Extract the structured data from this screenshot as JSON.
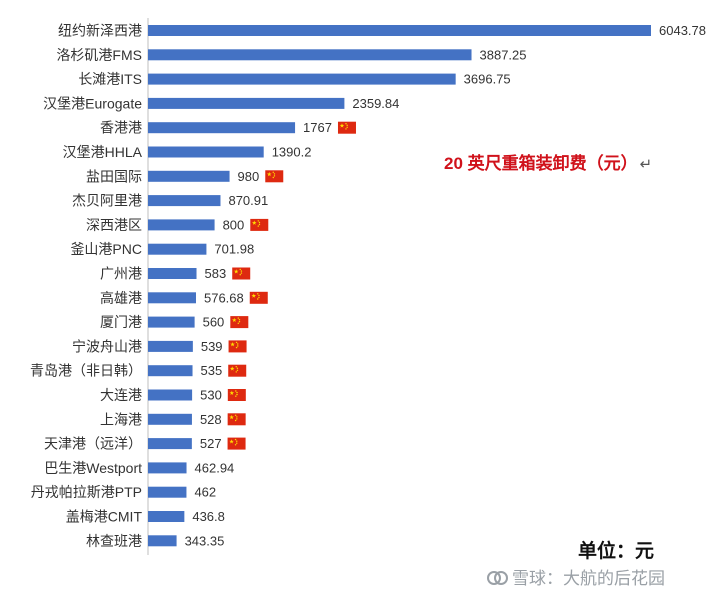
{
  "chart_data": {
    "type": "bar",
    "orientation": "horizontal",
    "title": "20 英尺重箱装卸费（元）",
    "unit_note": "单位：元",
    "bar_color": "#4472c4",
    "categories": [
      "纽约新泽西港",
      "洛杉矶港FMS",
      "长滩港ITS",
      "汉堡港Eurogate",
      "香港港",
      "汉堡港HHLA",
      "盐田国际",
      "杰贝阿里港",
      "深西港区",
      "釜山港PNC",
      "广州港",
      "高雄港",
      "厦门港",
      "宁波舟山港",
      "青岛港（非日韩）",
      "大连港",
      "上海港",
      "天津港（远洋）",
      "巴生港Westport",
      "丹戎帕拉斯港PTP",
      "盖梅港CMIT",
      "林查班港"
    ],
    "value_labels": [
      "6043.78",
      "3887.25",
      "3696.75",
      "2359.84",
      "1767",
      "1390.2",
      "980",
      "870.91",
      "800",
      "701.98",
      "583",
      "576.68",
      "560",
      "539",
      "535",
      "530",
      "528",
      "527",
      "462.94",
      "462",
      "436.8",
      "343.35"
    ],
    "values": [
      6043.78,
      3887.25,
      3696.75,
      2359.84,
      1767,
      1390.2,
      980,
      870.91,
      800,
      701.98,
      583,
      576.68,
      560,
      539,
      535,
      530,
      528,
      527,
      462.94,
      462,
      436.8,
      343.35
    ],
    "china_flag": [
      false,
      false,
      false,
      false,
      true,
      false,
      true,
      false,
      true,
      false,
      true,
      true,
      true,
      true,
      true,
      true,
      true,
      true,
      false,
      false,
      false,
      false
    ],
    "xlim": [
      0,
      6043.78
    ]
  },
  "watermark": {
    "text": "雪球：大航的后花园",
    "icon": "snowball-logo-icon"
  }
}
